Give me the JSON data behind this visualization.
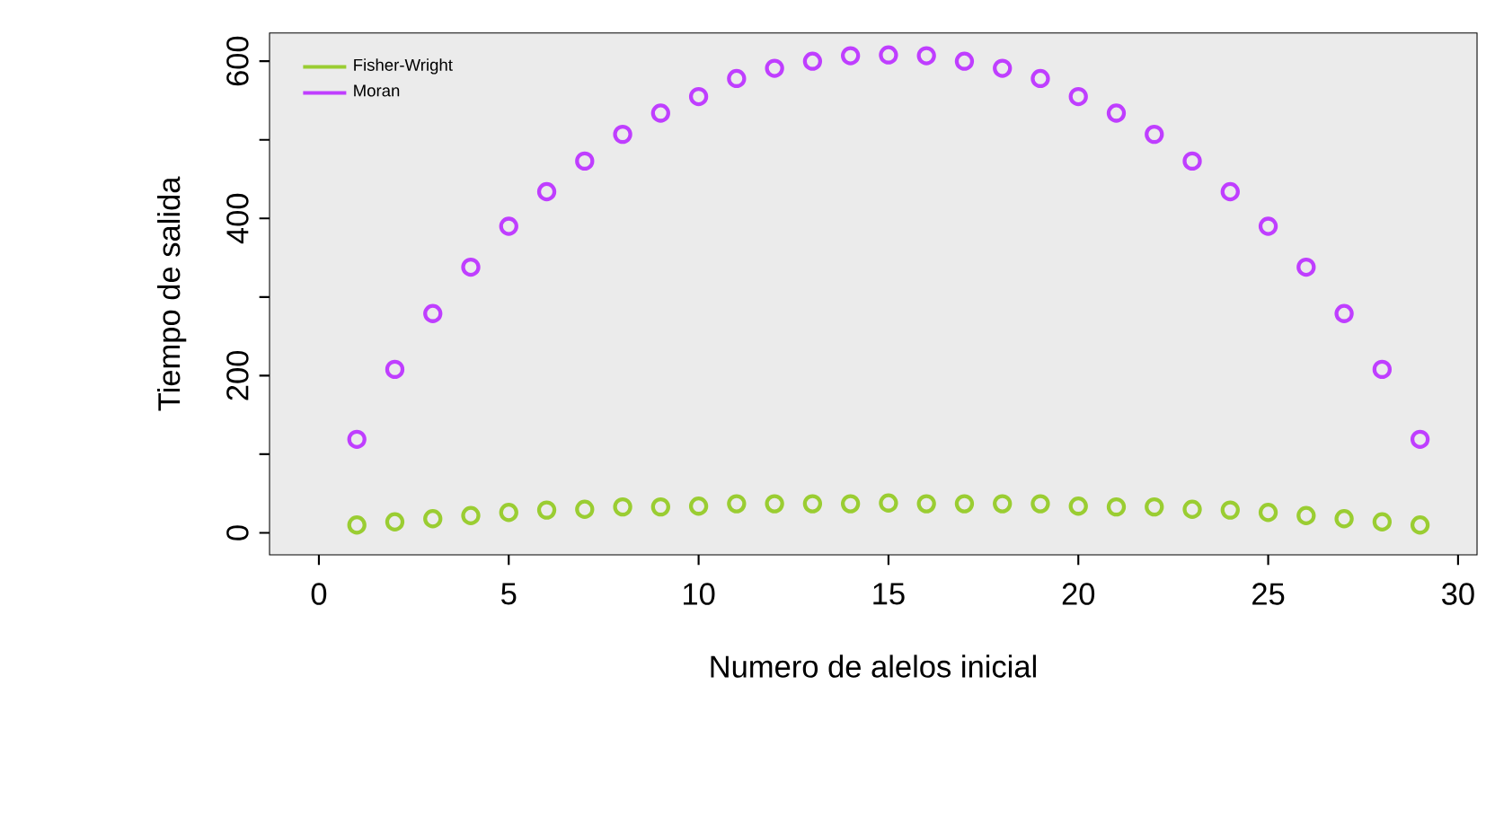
{
  "chart_data": {
    "type": "scatter",
    "xlabel": "Numero de alelos inicial",
    "ylabel": "Tiempo de salida",
    "x": [
      1,
      2,
      3,
      4,
      5,
      6,
      7,
      8,
      9,
      10,
      11,
      12,
      13,
      14,
      15,
      16,
      17,
      18,
      19,
      20,
      21,
      22,
      23,
      24,
      25,
      26,
      27,
      28,
      29
    ],
    "series": [
      {
        "name": "Fisher-Wright",
        "color": "#9acd32",
        "values": [
          10,
          14,
          18,
          22,
          26,
          29,
          30,
          33,
          33,
          34,
          37,
          37,
          37,
          37,
          38,
          37,
          37,
          37,
          37,
          34,
          33,
          33,
          30,
          29,
          26,
          22,
          18,
          14,
          10
        ]
      },
      {
        "name": "Moran",
        "color": "#bf3eff",
        "values": [
          119,
          208,
          279,
          338,
          390,
          434,
          473,
          507,
          534,
          555,
          578,
          591,
          600,
          607,
          608,
          607,
          600,
          591,
          578,
          555,
          534,
          507,
          473,
          434,
          390,
          338,
          279,
          208,
          119
        ]
      }
    ],
    "xlim": [
      -1.3,
      30.5
    ],
    "ylim": [
      -28,
      636
    ],
    "xticks": [
      0,
      5,
      10,
      15,
      20,
      25,
      30
    ],
    "yticks": [
      0,
      {
        "value": 100,
        "label": null
      },
      200,
      {
        "value": 300,
        "label": null
      },
      400,
      {
        "value": 500,
        "label": null
      },
      600
    ],
    "grid": false,
    "legend": "top left",
    "marker": "circle"
  }
}
